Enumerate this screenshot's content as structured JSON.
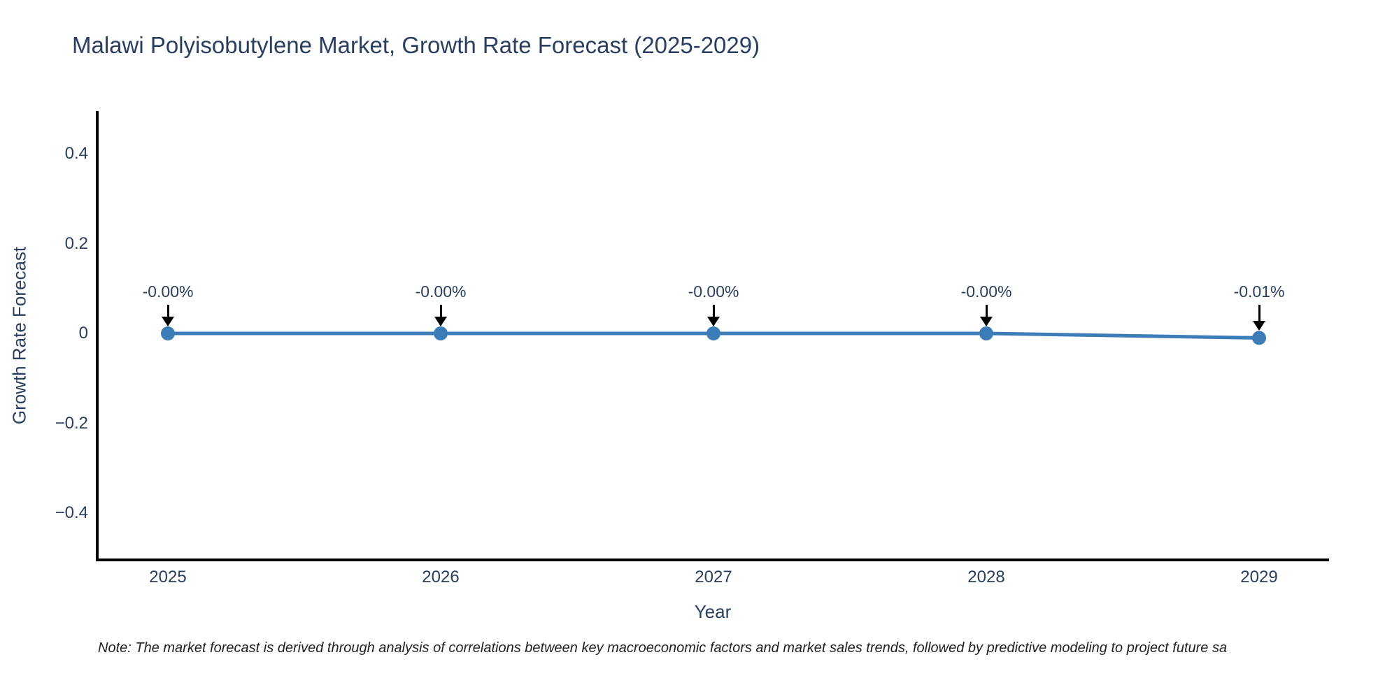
{
  "title": "Malawi Polyisobutylene Market, Growth Rate Forecast (2025-2029)",
  "note": "Note: The market forecast is derived through analysis of correlations between key macroeconomic factors and market sales trends, followed by predictive modeling to project future sa",
  "colors": {
    "text": "#2a3f5f",
    "axis_line": "#000000",
    "line": "#3c7db8",
    "marker": "#3c7db8",
    "arrow": "#000000",
    "note_text": "#222222",
    "background": "#ffffff"
  },
  "chart_data": {
    "type": "line",
    "title": "Malawi Polyisobutylene Market, Growth Rate Forecast (2025-2029)",
    "xlabel": "Year",
    "ylabel": "Growth Rate Forecast",
    "x": [
      2025,
      2026,
      2027,
      2028,
      2029
    ],
    "values": [
      -0.0,
      -0.0,
      -0.0,
      -0.0,
      -0.01
    ],
    "point_labels": [
      "-0.00%",
      "-0.00%",
      "-0.00%",
      "-0.00%",
      "-0.01%"
    ],
    "xtick_labels": [
      "2025",
      "2026",
      "2027",
      "2028",
      "2029"
    ],
    "yticks": [
      0.4,
      0.2,
      0,
      -0.2,
      -0.4
    ],
    "ytick_labels": [
      "0.4",
      "0.2",
      "0",
      "−0.2",
      "−0.4"
    ],
    "ylim": [
      -0.5,
      0.5
    ],
    "grid": false,
    "legend": "none",
    "markers": "circle"
  }
}
